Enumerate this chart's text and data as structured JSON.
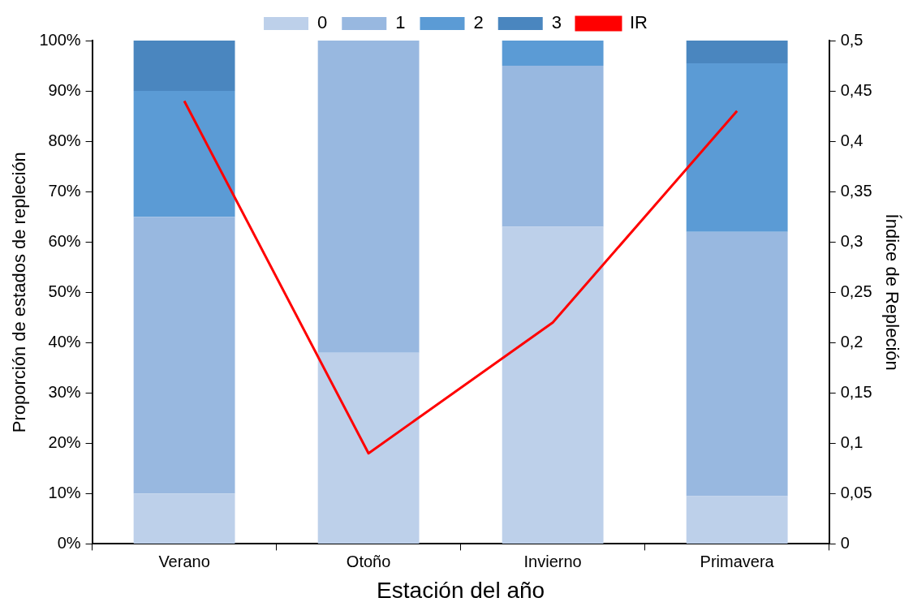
{
  "chart_data": {
    "type": "bar",
    "stacked": true,
    "xlabel": "Estación del año",
    "ylabel": "Proporción de estados de repleción",
    "y2label": "Índice de Repleción",
    "categories": [
      "Verano",
      "Otoño",
      "Invierno",
      "Primavera"
    ],
    "series": [
      {
        "name": "0",
        "color": "#bdd0ea",
        "values": [
          10,
          38,
          63,
          9.5
        ]
      },
      {
        "name": "1",
        "color": "#98b8e0",
        "values": [
          55,
          62,
          32,
          52.5
        ]
      },
      {
        "name": "2",
        "color": "#5b9bd5",
        "values": [
          25,
          0,
          5,
          33.5
        ]
      },
      {
        "name": "3",
        "color": "#4a86bf",
        "values": [
          10,
          0,
          0,
          4.5
        ]
      },
      {
        "name": "IR",
        "type": "line",
        "axis": "y2",
        "color": "#ff0000",
        "marker": "none",
        "values": [
          0.44,
          0.09,
          0.22,
          0.43
        ]
      }
    ],
    "ylim": [
      0,
      100
    ],
    "yticks": [
      {
        "value": 0,
        "label": "0%"
      },
      {
        "value": 10,
        "label": "10%"
      },
      {
        "value": 20,
        "label": "20%"
      },
      {
        "value": 30,
        "label": "30%"
      },
      {
        "value": 40,
        "label": "40%"
      },
      {
        "value": 50,
        "label": "50%"
      },
      {
        "value": 60,
        "label": "60%"
      },
      {
        "value": 70,
        "label": "70%"
      },
      {
        "value": 80,
        "label": "80%"
      },
      {
        "value": 90,
        "label": "90%"
      },
      {
        "value": 100,
        "label": "100%"
      }
    ],
    "y2lim": [
      0,
      0.5
    ],
    "y2ticks": [
      0,
      {
        "value": 0.05,
        "label": "0,05"
      },
      {
        "value": 0.1,
        "label": "0,1"
      },
      {
        "value": 0.15,
        "label": "0,15"
      },
      {
        "value": 0.2,
        "label": "0,2"
      },
      {
        "value": 0.25,
        "label": "0,25"
      },
      {
        "value": 0.3,
        "label": "0,3"
      },
      {
        "value": 0.35,
        "label": "0,35"
      },
      {
        "value": 0.4,
        "label": "0,4"
      },
      {
        "value": 0.45,
        "label": "0,45"
      },
      {
        "value": 0.5,
        "label": "0,5"
      }
    ],
    "grid": false,
    "legend": "top"
  }
}
